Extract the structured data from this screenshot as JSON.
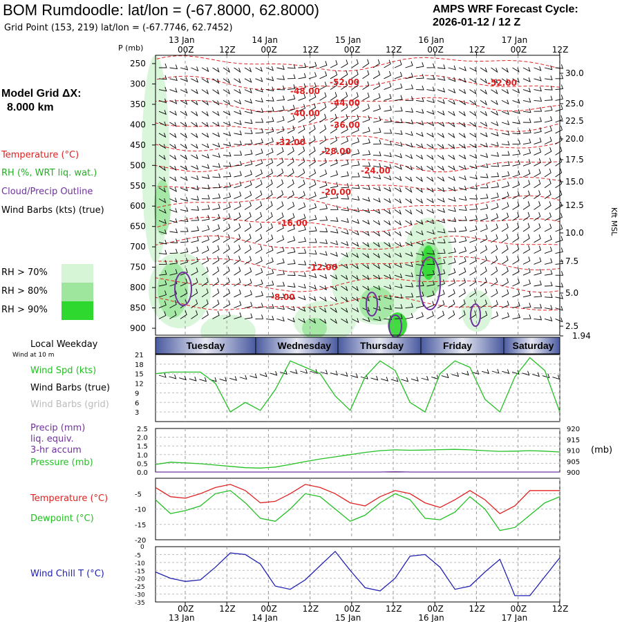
{
  "header": {
    "title": "BOM Rumdoodle:  lat/lon = (-67.8000, 62.8000)",
    "grid_point": "Grid Point (153, 219) lat/lon = (-67.7746, 62.7452)",
    "cycle_line1": "AMPS WRF Forecast Cycle:",
    "cycle_line2": "2026-01-12 / 12  Z",
    "model_grid_label": "Model Grid ΔX:",
    "model_grid_value": "8.000 km"
  },
  "colors": {
    "temperature": "#e02020",
    "rh_label": "#20b020",
    "cloud": "#7030a0",
    "rh70": "#d6f5d6",
    "rh80": "#9ee69e",
    "rh90": "#2ed82e",
    "wind_speed": "#22c022",
    "dewpoint": "#22c022",
    "pressure": "#22c022",
    "wind_chill": "#2020b0",
    "gray": "#bbbbbb",
    "weekday_band": "#4a5aa0"
  },
  "legend": {
    "temperature": "Temperature (°C)",
    "rh": "RH (%, WRT liq. wat.)",
    "cloud": "Cloud/Precip Outline",
    "wind_barbs": "Wind Barbs (kts) (true)",
    "rh70": "RH > 70%",
    "rh80": "RH > 80%",
    "rh90": "RH > 90%",
    "local_weekday": "Local Weekday",
    "wind_at": "Wind at 10 m",
    "wind_spd": "Wind Spd (kts)",
    "wind_barbs_true": "Wind Barbs (true)",
    "wind_barbs_grid": "Wind Barbs (grid)",
    "precip": "Precip (mm)",
    "liq_equiv": "liq. equiv.",
    "accum": "3-hr accum",
    "pressure": "Pressure (mb)",
    "pressure_unit": "(mb)",
    "temperature_c": "Temperature (°C)",
    "dewpoint": "Dewpoint (°C)",
    "wind_chill": "Wind Chill T (°C)"
  },
  "chart_data": [
    {
      "type": "heatmap",
      "name": "vertical-cross-section",
      "title": "Pressure-time cross section",
      "ylabel": "P (mb)",
      "ylabel_right": "Kft MSL",
      "y_ticks": [
        250,
        300,
        350,
        400,
        450,
        500,
        550,
        600,
        650,
        700,
        750,
        800,
        850,
        900
      ],
      "y_right_ticks": [
        "30.0",
        "25.0",
        "22.5",
        "20.0",
        "17.5",
        "15.0",
        "12.5",
        "10.0",
        "7.5",
        "5.0",
        "2.5",
        "1.94"
      ],
      "x_ticks": [
        "00Z",
        "12Z",
        "00Z",
        "12Z",
        "00Z",
        "12Z",
        "00Z",
        "12Z",
        "00Z",
        "12Z"
      ],
      "date_labels": [
        "13 Jan",
        "14 Jan",
        "15 Jan",
        "16 Jan",
        "17 Jan"
      ],
      "temperature_labels": [
        "-52.00",
        "-48.00",
        "-44.00",
        "-40.00",
        "-36.00",
        "-32.00",
        "-28.00",
        "-24.00",
        "-20.00",
        "-16.00",
        "-12.00",
        "-8.00",
        "-52.00"
      ]
    },
    {
      "type": "line",
      "name": "surface-wind",
      "weekdays": [
        "Tuesday",
        "Wednesday",
        "Thursday",
        "Friday",
        "Saturday"
      ],
      "y_ticks": [
        21,
        18,
        15,
        12,
        9,
        6,
        3
      ],
      "ylim": [
        0,
        21
      ],
      "series": [
        {
          "name": "Wind Spd (kts)",
          "values": [
            15,
            15.5,
            15.5,
            15.5,
            12,
            3,
            6,
            3.5,
            10,
            19,
            17,
            15,
            8,
            3.5,
            14,
            19,
            16,
            6,
            3,
            15,
            19,
            17,
            7,
            3,
            14,
            20,
            16,
            3
          ]
        }
      ]
    },
    {
      "type": "line",
      "name": "precip-pressure",
      "y_ticks": [
        "2.5",
        "2.0",
        "1.5",
        "1.0",
        "0.5",
        "0.0"
      ],
      "y_right_ticks": [
        "920",
        "915",
        "910",
        "905",
        "900"
      ],
      "ylim": [
        0,
        2.5
      ],
      "ylim_right": [
        900,
        920
      ],
      "series": [
        {
          "name": "Pressure (mb)",
          "values": [
            903.5,
            904.5,
            904.2,
            903.8,
            903.2,
            902.6,
            902.0,
            901.8,
            902.3,
            903.5,
            904.8,
            906.0,
            907.0,
            908.0,
            909.0,
            909.8,
            910.2,
            910.0,
            910.1,
            910.3,
            910.4,
            910.2,
            909.8,
            909.5,
            909.6,
            909.8,
            909.6,
            909.2
          ]
        },
        {
          "name": "Precip (mm)",
          "values": [
            0,
            0,
            0,
            0,
            0,
            0,
            0,
            0,
            0,
            0,
            0,
            0,
            0,
            0,
            0,
            0,
            0.02,
            0,
            0,
            0,
            0,
            0,
            0,
            0,
            0,
            0,
            0,
            0
          ]
        }
      ]
    },
    {
      "type": "line",
      "name": "temperature-dewpoint",
      "y_ticks": [
        -5,
        -10,
        -15,
        -20
      ],
      "ylim": [
        -20,
        0
      ],
      "series": [
        {
          "name": "Temperature (°C)",
          "values": [
            -3,
            -6,
            -6.5,
            -5,
            -3,
            -2,
            -4,
            -8,
            -7.5,
            -5,
            -2,
            -3,
            -5,
            -8,
            -9,
            -6,
            -4,
            -5,
            -8,
            -9.5,
            -7,
            -4,
            -7,
            -11.5,
            -9,
            -4,
            -4,
            -4
          ]
        },
        {
          "name": "Dewpoint (°C)",
          "values": [
            -7,
            -11.5,
            -10.5,
            -9,
            -5,
            -4,
            -8,
            -13,
            -14,
            -10,
            -5,
            -6,
            -10,
            -14,
            -12,
            -8,
            -5,
            -7,
            -13,
            -13.5,
            -11,
            -6,
            -10,
            -17,
            -16,
            -12,
            -8,
            -6
          ]
        }
      ]
    },
    {
      "type": "line",
      "name": "wind-chill",
      "y_ticks": [
        -5,
        -10,
        -15,
        -20,
        -25,
        -30,
        -35
      ],
      "ylim": [
        -35,
        0
      ],
      "series": [
        {
          "name": "Wind Chill T (°C)",
          "values": [
            -16,
            -20,
            -22,
            -21,
            -13,
            -4,
            -5,
            -11,
            -25,
            -27,
            -21,
            -12,
            -3,
            -15,
            -26,
            -28,
            -20,
            -6,
            -5,
            -13,
            -27,
            -25,
            -16,
            -8,
            -31,
            -31,
            -19,
            -7
          ]
        }
      ]
    }
  ]
}
